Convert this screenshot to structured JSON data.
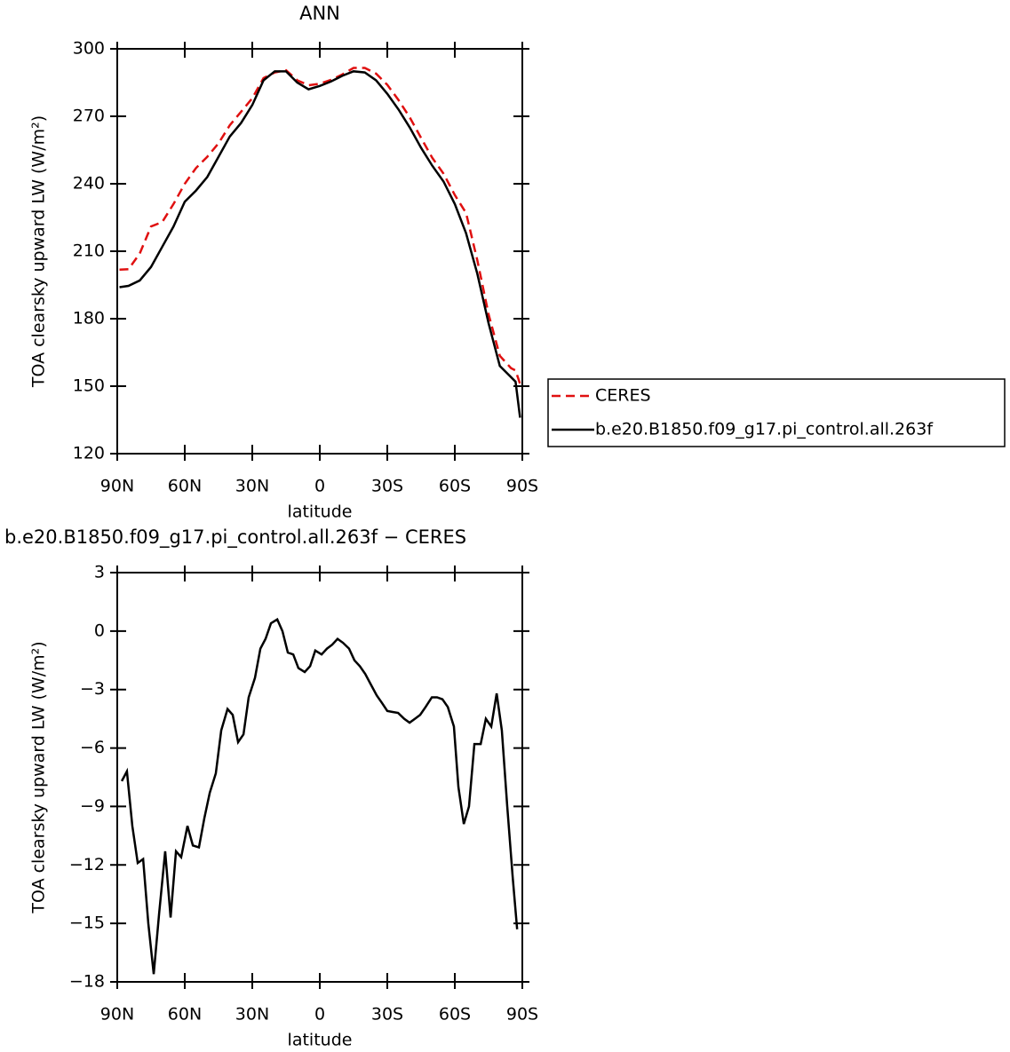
{
  "chart_data": [
    {
      "type": "line",
      "title": "ANN",
      "xlabel": "latitude",
      "ylabel": "TOA clearsky upward LW (W/m²)",
      "xlim": [
        90,
        -90
      ],
      "xticks": [
        {
          "value": 90,
          "label": "90N"
        },
        {
          "value": 60,
          "label": "60N"
        },
        {
          "value": 30,
          "label": "30N"
        },
        0,
        {
          "value": -30,
          "label": "30S"
        },
        {
          "value": -60,
          "label": "60S"
        },
        {
          "value": -90,
          "label": "90S"
        }
      ],
      "ylim": [
        120,
        300
      ],
      "yticks": [
        120,
        150,
        180,
        210,
        240,
        270,
        300
      ],
      "legend": "outside right",
      "x": [
        89,
        85,
        80,
        75,
        70,
        65,
        60,
        55,
        50,
        45,
        40,
        35,
        30,
        25,
        20,
        15,
        10,
        5,
        0,
        -5,
        -10,
        -15,
        -20,
        -25,
        -30,
        -35,
        -40,
        -45,
        -50,
        -55,
        -60,
        -65,
        -70,
        -75,
        -80,
        -85,
        -87,
        -89
      ],
      "series": [
        {
          "name": "CERES",
          "color": "#e01010",
          "dashed": true,
          "values": [
            201.8,
            202,
            209,
            221,
            223,
            231,
            240,
            247,
            252,
            258,
            266,
            272,
            278,
            287,
            289.5,
            290.5,
            286,
            283.8,
            284.5,
            286.2,
            288.6,
            291.5,
            291.5,
            289,
            284,
            277.2,
            269.5,
            260.4,
            251.5,
            244.5,
            235,
            227,
            206,
            182,
            163.5,
            158,
            157,
            151
          ]
        },
        {
          "name": "b.e20.B1850.f09_g17.pi_control.all.263f",
          "color": "#000000",
          "dashed": false,
          "values": [
            194,
            194.6,
            197,
            203,
            212,
            221,
            232,
            237,
            243,
            252,
            261,
            267,
            275,
            286,
            290,
            290,
            285,
            282,
            283.5,
            285.5,
            288,
            290,
            289.5,
            286,
            280,
            273,
            265,
            256,
            248,
            241,
            231,
            218,
            200,
            178,
            159,
            154,
            152,
            136
          ]
        }
      ]
    },
    {
      "type": "line",
      "title": "b.e20.B1850.f09_g17.pi_control.all.263f − CERES",
      "xlabel": "latitude",
      "ylabel": "TOA clearsky upward LW (W/m²)",
      "xlim": [
        90,
        -90
      ],
      "xticks": [
        {
          "value": 90,
          "label": "90N"
        },
        {
          "value": 60,
          "label": "60N"
        },
        {
          "value": 30,
          "label": "30N"
        },
        0,
        {
          "value": -30,
          "label": "30S"
        },
        {
          "value": -60,
          "label": "60S"
        },
        {
          "value": -90,
          "label": "90S"
        }
      ],
      "ylim": [
        -18,
        3
      ],
      "yticks": [
        {
          "value": -18,
          "label": "−18"
        },
        {
          "value": -15,
          "label": "−15"
        },
        {
          "value": -12,
          "label": "−12"
        },
        {
          "value": -9,
          "label": "−9"
        },
        {
          "value": -6,
          "label": "−6"
        },
        {
          "value": -3,
          "label": "−3"
        },
        0,
        3
      ],
      "x": [
        88.0,
        85.7,
        83.3,
        80.9,
        78.5,
        76.2,
        73.8,
        71.4,
        68.7,
        66.3,
        63.9,
        61.6,
        58.8,
        56.4,
        53.7,
        51.3,
        48.9,
        46.2,
        43.8,
        41.0,
        38.7,
        36.3,
        33.9,
        31.6,
        28.8,
        26.4,
        24.1,
        21.7,
        18.9,
        16.6,
        14.2,
        11.8,
        9.5,
        6.7,
        4.3,
        2.0,
        -0.8,
        -3.2,
        -5.5,
        -7.9,
        -10.3,
        -13.0,
        -15.4,
        -17.8,
        -20.2,
        -22.5,
        -25.3,
        -27.7,
        -30.0,
        -32.4,
        -34.8,
        -37.5,
        -39.9,
        -42.3,
        -44.6,
        -47.0,
        -49.8,
        -52.1,
        -54.5,
        -56.9,
        -59.6,
        -61.6,
        -64.0,
        -66.3,
        -68.7,
        -71.5,
        -73.8,
        -76.2,
        -78.6,
        -80.9,
        -83.3,
        -85.7,
        -87.7
      ],
      "series": [
        {
          "color": "#000000",
          "values": [
            -7.7,
            -7.2,
            -10,
            -11.9,
            -11.7,
            -15,
            -17.6,
            -14.5,
            -11.3,
            -14.7,
            -11.3,
            -11.6,
            -10,
            -11,
            -11.1,
            -9.6,
            -8.3,
            -7.3,
            -5.1,
            -4,
            -4.3,
            -5.7,
            -5.3,
            -3.4,
            -2.4,
            -0.9,
            -0.4,
            0.4,
            0.6,
            0,
            -1.1,
            -1.2,
            -1.9,
            -2.1,
            -1.8,
            -1,
            -1.2,
            -0.9,
            -0.7,
            -0.4,
            -0.6,
            -0.9,
            -1.5,
            -1.8,
            -2.2,
            -2.7,
            -3.3,
            -3.7,
            -4.1,
            -4.15,
            -4.2,
            -4.5,
            -4.7,
            -4.5,
            -4.3,
            -3.9,
            -3.4,
            -3.4,
            -3.5,
            -3.9,
            -4.9,
            -8,
            -9.9,
            -9,
            -5.8,
            -5.8,
            -4.5,
            -4.9,
            -3.2,
            -5.1,
            -9,
            -12.6,
            -15.3
          ]
        }
      ]
    }
  ]
}
